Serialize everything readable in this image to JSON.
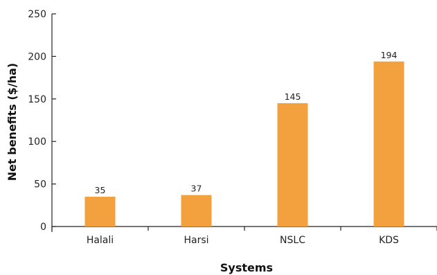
{
  "chart_data": {
    "type": "bar",
    "title": "",
    "xlabel": "Systems",
    "ylabel": "Net benefits ($/ha)",
    "categories": [
      "Halali",
      "Harsi",
      "NSLC",
      "KDS"
    ],
    "values": [
      35,
      37,
      145,
      194
    ],
    "data_labels": [
      "35",
      "37",
      "145",
      "194"
    ],
    "ylim": [
      0,
      250
    ],
    "y_ticks": [
      0,
      50,
      100,
      150,
      200,
      250
    ],
    "grid": false,
    "legend": "none",
    "bar_color": "#F3A03F",
    "axis_color": "#222222"
  }
}
